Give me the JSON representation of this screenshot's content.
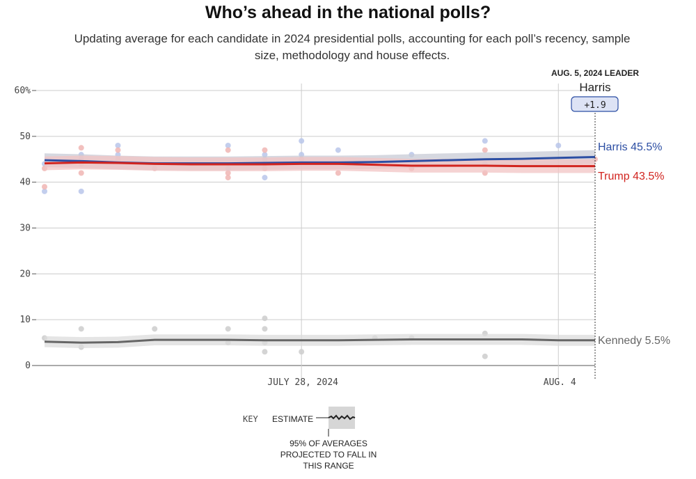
{
  "colors": {
    "harris": "#2c4ea3",
    "trump": "#d1241f",
    "kennedy": "#666666",
    "harris_band": "#c8cbd6",
    "trump_band": "#f2c4c4",
    "kennedy_band": "#dcdcdc",
    "harris_dot": "#b9c6ea",
    "trump_dot": "#f0b5b3",
    "kennedy_dot": "#cccccc",
    "grid": "#cccccc",
    "badge_fill": "#dde3f5",
    "badge_stroke": "#2c4ea3"
  },
  "header": {
    "title": "Who’s ahead in the national polls?",
    "subtitle": "Updating average for each candidate in 2024 presidential polls, accounting for each poll’s recency, sample size, methodology and house effects."
  },
  "leader": {
    "header": "AUG. 5, 2024 LEADER",
    "name": "Harris",
    "margin": "+1.9"
  },
  "end_labels": {
    "harris": "Harris 45.5%",
    "trump": "Trump 43.5%",
    "kennedy": "Kennedy 5.5%"
  },
  "key": {
    "key_label": "KEY",
    "estimate_label": "ESTIMATE",
    "range_line1": "95% OF AVERAGES",
    "range_line2": "PROJECTED TO FALL IN",
    "range_line3": "THIS RANGE"
  },
  "chart_data": {
    "type": "line",
    "title": "Who’s ahead in the national polls?",
    "ylim": [
      0,
      60
    ],
    "yticks": [
      0,
      10,
      20,
      30,
      40,
      50,
      60
    ],
    "ytick_labels": [
      "0",
      "10",
      "20",
      "30",
      "40",
      "50",
      "60%"
    ],
    "xlim": [
      "2024-07-21",
      "2024-08-05"
    ],
    "xticks": [
      "2024-07-28",
      "2024-08-04"
    ],
    "xtick_labels": [
      "JULY 28, 2024",
      "AUG. 4"
    ],
    "grid": true,
    "series": [
      {
        "name": "Harris",
        "key": "harris",
        "x": [
          "2024-07-21",
          "2024-07-22",
          "2024-07-23",
          "2024-07-24",
          "2024-07-25",
          "2024-07-26",
          "2024-07-27",
          "2024-07-28",
          "2024-07-29",
          "2024-07-30",
          "2024-07-31",
          "2024-08-01",
          "2024-08-02",
          "2024-08-03",
          "2024-08-04",
          "2024-08-05"
        ],
        "values": [
          44.8,
          44.6,
          44.3,
          44.1,
          44.1,
          44.1,
          44.2,
          44.3,
          44.3,
          44.4,
          44.6,
          44.8,
          45.0,
          45.1,
          45.3,
          45.5
        ],
        "band_width": 1.5
      },
      {
        "name": "Trump",
        "key": "trump",
        "x": [
          "2024-07-21",
          "2024-07-22",
          "2024-07-23",
          "2024-07-24",
          "2024-07-25",
          "2024-07-26",
          "2024-07-27",
          "2024-07-28",
          "2024-07-29",
          "2024-07-30",
          "2024-07-31",
          "2024-08-01",
          "2024-08-02",
          "2024-08-03",
          "2024-08-04",
          "2024-08-05"
        ],
        "values": [
          44.1,
          44.3,
          44.2,
          44.0,
          43.9,
          43.9,
          43.9,
          44.0,
          44.0,
          43.8,
          43.6,
          43.6,
          43.6,
          43.5,
          43.5,
          43.5
        ],
        "band_width": 1.5
      },
      {
        "name": "Kennedy",
        "key": "kennedy",
        "x": [
          "2024-07-21",
          "2024-07-22",
          "2024-07-23",
          "2024-07-24",
          "2024-07-25",
          "2024-07-26",
          "2024-07-27",
          "2024-07-28",
          "2024-07-29",
          "2024-07-30",
          "2024-07-31",
          "2024-08-01",
          "2024-08-02",
          "2024-08-03",
          "2024-08-04",
          "2024-08-05"
        ],
        "values": [
          5.2,
          5.0,
          5.1,
          5.6,
          5.6,
          5.6,
          5.5,
          5.5,
          5.5,
          5.6,
          5.7,
          5.7,
          5.7,
          5.7,
          5.5,
          5.5
        ],
        "band_width": 1.2
      }
    ],
    "polls": [
      {
        "series": "harris",
        "x": "2024-07-21",
        "y": 44
      },
      {
        "series": "harris",
        "x": "2024-07-21",
        "y": 38
      },
      {
        "series": "harris",
        "x": "2024-07-22",
        "y": 46
      },
      {
        "series": "harris",
        "x": "2024-07-22",
        "y": 45
      },
      {
        "series": "harris",
        "x": "2024-07-22",
        "y": 38
      },
      {
        "series": "harris",
        "x": "2024-07-23",
        "y": 48
      },
      {
        "series": "harris",
        "x": "2024-07-23",
        "y": 46
      },
      {
        "series": "harris",
        "x": "2024-07-26",
        "y": 48
      },
      {
        "series": "harris",
        "x": "2024-07-26",
        "y": 43
      },
      {
        "series": "harris",
        "x": "2024-07-27",
        "y": 46
      },
      {
        "series": "harris",
        "x": "2024-07-27",
        "y": 45
      },
      {
        "series": "harris",
        "x": "2024-07-27",
        "y": 41
      },
      {
        "series": "harris",
        "x": "2024-07-28",
        "y": 49
      },
      {
        "series": "harris",
        "x": "2024-07-28",
        "y": 46
      },
      {
        "series": "harris",
        "x": "2024-07-29",
        "y": 47
      },
      {
        "series": "harris",
        "x": "2024-07-31",
        "y": 46
      },
      {
        "series": "harris",
        "x": "2024-08-02",
        "y": 49
      },
      {
        "series": "harris",
        "x": "2024-08-02",
        "y": 44
      },
      {
        "series": "harris",
        "x": "2024-08-04",
        "y": 48
      },
      {
        "series": "trump",
        "x": "2024-07-21",
        "y": 43
      },
      {
        "series": "trump",
        "x": "2024-07-21",
        "y": 39
      },
      {
        "series": "trump",
        "x": "2024-07-22",
        "y": 47.5
      },
      {
        "series": "trump",
        "x": "2024-07-22",
        "y": 44
      },
      {
        "series": "trump",
        "x": "2024-07-22",
        "y": 42
      },
      {
        "series": "trump",
        "x": "2024-07-23",
        "y": 47
      },
      {
        "series": "trump",
        "x": "2024-07-23",
        "y": 45
      },
      {
        "series": "trump",
        "x": "2024-07-24",
        "y": 43
      },
      {
        "series": "trump",
        "x": "2024-07-26",
        "y": 47
      },
      {
        "series": "trump",
        "x": "2024-07-26",
        "y": 42
      },
      {
        "series": "trump",
        "x": "2024-07-26",
        "y": 41
      },
      {
        "series": "trump",
        "x": "2024-07-27",
        "y": 47
      },
      {
        "series": "trump",
        "x": "2024-07-27",
        "y": 44
      },
      {
        "series": "trump",
        "x": "2024-07-27",
        "y": 43
      },
      {
        "series": "trump",
        "x": "2024-07-28",
        "y": 45
      },
      {
        "series": "trump",
        "x": "2024-07-29",
        "y": 42
      },
      {
        "series": "trump",
        "x": "2024-07-31",
        "y": 43
      },
      {
        "series": "trump",
        "x": "2024-08-02",
        "y": 47
      },
      {
        "series": "trump",
        "x": "2024-08-02",
        "y": 42
      },
      {
        "series": "trump",
        "x": "2024-08-05",
        "y": 45
      },
      {
        "series": "kennedy",
        "x": "2024-07-21",
        "y": 6
      },
      {
        "series": "kennedy",
        "x": "2024-07-22",
        "y": 8
      },
      {
        "series": "kennedy",
        "x": "2024-07-22",
        "y": 4
      },
      {
        "series": "kennedy",
        "x": "2024-07-24",
        "y": 8
      },
      {
        "series": "kennedy",
        "x": "2024-07-26",
        "y": 8
      },
      {
        "series": "kennedy",
        "x": "2024-07-26",
        "y": 5
      },
      {
        "series": "kennedy",
        "x": "2024-07-27",
        "y": 10.3
      },
      {
        "series": "kennedy",
        "x": "2024-07-27",
        "y": 8
      },
      {
        "series": "kennedy",
        "x": "2024-07-27",
        "y": 5
      },
      {
        "series": "kennedy",
        "x": "2024-07-27",
        "y": 3
      },
      {
        "series": "kennedy",
        "x": "2024-07-28",
        "y": 3
      },
      {
        "series": "kennedy",
        "x": "2024-07-30",
        "y": 6
      },
      {
        "series": "kennedy",
        "x": "2024-07-31",
        "y": 6
      },
      {
        "series": "kennedy",
        "x": "2024-08-02",
        "y": 7
      },
      {
        "series": "kennedy",
        "x": "2024-08-02",
        "y": 2
      }
    ]
  }
}
